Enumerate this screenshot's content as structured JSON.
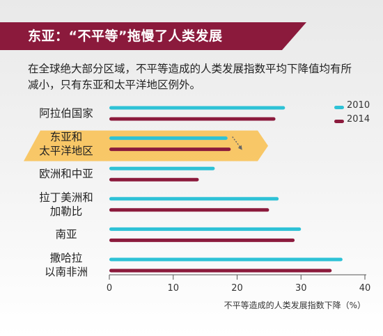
{
  "header": {
    "title": "东亚：“不平等”拖慢了人类发展",
    "subtitle": "在全球绝大部分区域，不平等造成的人类发展指数平均下降值均有所减小，只有东亚和太平洋地区例外。"
  },
  "colors": {
    "banner": "#8b1a3c",
    "series_2010": "#2ec2d6",
    "series_2014": "#8b1a3c",
    "highlight": "#f9bf4f"
  },
  "chart_data": {
    "type": "bar",
    "orientation": "horizontal",
    "categories": [
      "阿拉伯国家",
      "东亚和\n太平洋地区",
      "欧洲和中亚",
      "拉丁美洲和\n加勒比",
      "南亚",
      "撒哈拉\n以南非洲"
    ],
    "series": [
      {
        "name": "2010",
        "values": [
          27.5,
          18.5,
          16.5,
          26.5,
          30,
          36.5
        ]
      },
      {
        "name": "2014",
        "values": [
          26,
          19,
          14,
          25,
          29,
          34.8
        ]
      }
    ],
    "highlight_category": "东亚和\n太平洋地区",
    "xlim": [
      0,
      40
    ],
    "xticks": [
      "0",
      "10",
      "20",
      "30",
      "40"
    ],
    "xlabel": "不平等造成的人类发展指数下降（%）",
    "legend_position": "top-right",
    "grid": false
  }
}
